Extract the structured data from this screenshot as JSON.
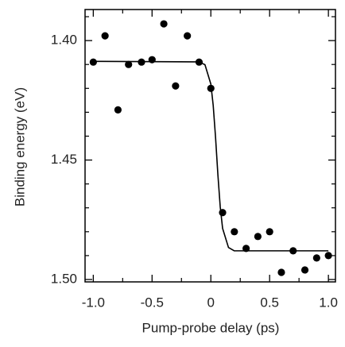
{
  "chart_data": {
    "type": "scatter",
    "x_label": "Pump-probe delay (ps)",
    "y_label": "Binding energy (eV)",
    "xlim": [
      -1.07,
      1.06
    ],
    "ylim": [
      1.501,
      1.387
    ],
    "xticks": [
      {
        "value": -1,
        "label": "-1.0"
      },
      {
        "value": -0.5,
        "label": "-0.5"
      },
      0,
      {
        "value": 0.5,
        "label": "0.5"
      },
      {
        "value": 1,
        "label": "1.0"
      }
    ],
    "yticks": [
      {
        "value": 1.4,
        "label": "1.40"
      },
      1.45,
      {
        "value": 1.5,
        "label": "1.50"
      }
    ],
    "x_minor_ticks": [
      -0.75,
      -0.25,
      0.25,
      0.75
    ],
    "y_minor_ticks": [
      1.39,
      1.41,
      1.42,
      1.43,
      1.44,
      1.46,
      1.47,
      1.48,
      1.49
    ],
    "color": "#000000",
    "points": {
      "x": [
        -1.0,
        -0.9,
        -0.79,
        -0.7,
        -0.59,
        -0.5,
        -0.4,
        -0.3,
        -0.2,
        -0.1,
        0.0,
        0.1,
        0.2,
        0.3,
        0.4,
        0.5,
        0.6,
        0.7,
        0.8,
        0.9,
        1.0
      ],
      "y": [
        1.409,
        1.398,
        1.429,
        1.41,
        1.409,
        1.408,
        1.393,
        1.419,
        1.398,
        1.409,
        1.42,
        1.472,
        1.48,
        1.487,
        1.482,
        1.48,
        1.497,
        1.488,
        1.496,
        1.491,
        1.49
      ]
    },
    "fit": {
      "x": [
        -1.0,
        -0.1,
        -0.05,
        0,
        0.02,
        0.04,
        0.06,
        0.08,
        0.1,
        0.15,
        0.2,
        1.0
      ],
      "y": [
        1.4087,
        1.4089,
        1.4101,
        1.4182,
        1.4271,
        1.4405,
        1.4562,
        1.4697,
        1.4786,
        1.4866,
        1.488,
        1.488
      ]
    }
  }
}
